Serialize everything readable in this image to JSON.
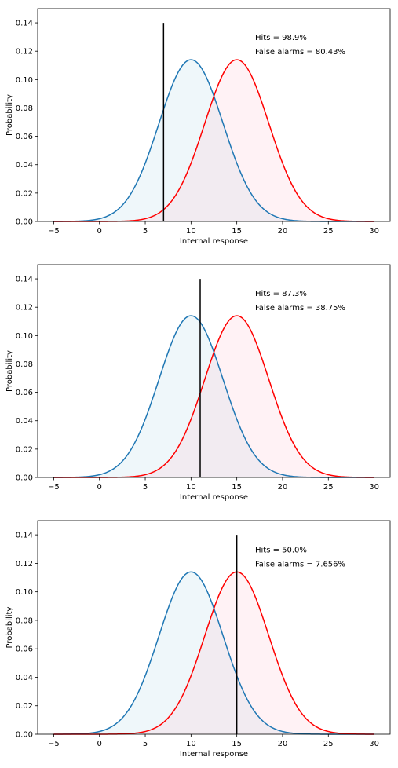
{
  "chart_data": [
    {
      "type": "line",
      "xlabel": "Internal response",
      "ylabel": "Probability",
      "xlim": [
        -6.75,
        31.75
      ],
      "ylim": [
        0,
        0.15
      ],
      "xticks": [
        -5,
        0,
        5,
        10,
        15,
        20,
        25,
        30
      ],
      "yticks": [
        0.0,
        0.02,
        0.04,
        0.06,
        0.08,
        0.1,
        0.12,
        0.14
      ],
      "xtick_labels": [
        "−5",
        "0",
        "5",
        "10",
        "15",
        "20",
        "25",
        "30"
      ],
      "ytick_labels": [
        "0.00",
        "0.02",
        "0.04",
        "0.06",
        "0.08",
        "0.10",
        "0.12",
        "0.14"
      ],
      "grid": false,
      "series": [
        {
          "mean": 10,
          "sd": 3.5,
          "color": "#1f77b4",
          "fill": "#add8e6",
          "x_range": [
            -5,
            30
          ]
        },
        {
          "mean": 15,
          "sd": 3.5,
          "color": "#ff0000",
          "fill": "#ffc0cb",
          "x_range": [
            -5,
            30
          ]
        }
      ],
      "criterion": {
        "x": 7,
        "y_top": 0.14,
        "color": "#000000"
      },
      "annotations": [
        "Hits = 98.9%",
        "False alarms = 80.43%"
      ],
      "annotation_position": {
        "x": 17,
        "y1": 0.13,
        "y2": 0.12
      }
    },
    {
      "type": "line",
      "xlabel": "Internal response",
      "ylabel": "Probability",
      "xlim": [
        -6.75,
        31.75
      ],
      "ylim": [
        0,
        0.15
      ],
      "xticks": [
        -5,
        0,
        5,
        10,
        15,
        20,
        25,
        30
      ],
      "yticks": [
        0.0,
        0.02,
        0.04,
        0.06,
        0.08,
        0.1,
        0.12,
        0.14
      ],
      "xtick_labels": [
        "−5",
        "0",
        "5",
        "10",
        "15",
        "20",
        "25",
        "30"
      ],
      "ytick_labels": [
        "0.00",
        "0.02",
        "0.04",
        "0.06",
        "0.08",
        "0.10",
        "0.12",
        "0.14"
      ],
      "grid": false,
      "series": [
        {
          "mean": 10,
          "sd": 3.5,
          "color": "#1f77b4",
          "fill": "#add8e6",
          "x_range": [
            -5,
            30
          ]
        },
        {
          "mean": 15,
          "sd": 3.5,
          "color": "#ff0000",
          "fill": "#ffc0cb",
          "x_range": [
            -5,
            30
          ]
        }
      ],
      "criterion": {
        "x": 11,
        "y_top": 0.14,
        "color": "#000000"
      },
      "annotations": [
        "Hits = 87.3%",
        "False alarms = 38.75%"
      ],
      "annotation_position": {
        "x": 17,
        "y1": 0.13,
        "y2": 0.12
      }
    },
    {
      "type": "line",
      "xlabel": "Internal response",
      "ylabel": "Probability",
      "xlim": [
        -6.75,
        31.75
      ],
      "ylim": [
        0,
        0.15
      ],
      "xticks": [
        -5,
        0,
        5,
        10,
        15,
        20,
        25,
        30
      ],
      "yticks": [
        0.0,
        0.02,
        0.04,
        0.06,
        0.08,
        0.1,
        0.12,
        0.14
      ],
      "xtick_labels": [
        "−5",
        "0",
        "5",
        "10",
        "15",
        "20",
        "25",
        "30"
      ],
      "ytick_labels": [
        "0.00",
        "0.02",
        "0.04",
        "0.06",
        "0.08",
        "0.10",
        "0.12",
        "0.14"
      ],
      "grid": false,
      "series": [
        {
          "mean": 10,
          "sd": 3.5,
          "color": "#1f77b4",
          "fill": "#add8e6",
          "x_range": [
            -5,
            30
          ]
        },
        {
          "mean": 15,
          "sd": 3.5,
          "color": "#ff0000",
          "fill": "#ffc0cb",
          "x_range": [
            -5,
            30
          ]
        }
      ],
      "criterion": {
        "x": 15,
        "y_top": 0.14,
        "color": "#000000"
      },
      "annotations": [
        "Hits = 50.0%",
        "False alarms = 7.656%"
      ],
      "annotation_position": {
        "x": 17,
        "y1": 0.13,
        "y2": 0.12
      }
    }
  ]
}
